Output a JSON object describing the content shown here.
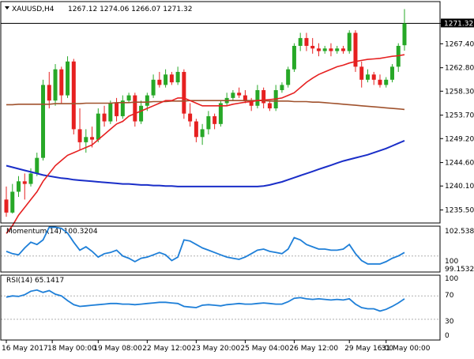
{
  "header": {
    "symbol": "XAUUSD,H4",
    "ohlc": "1267.12 1274.06 1266.07 1271.32"
  },
  "price_tag": "1271.32",
  "momentum_panel": {
    "label": "Momentum(14) 100.3204",
    "scale_top": "102.5385",
    "scale_mid": "100",
    "scale_bottom": "99.1532"
  },
  "rsi_panel": {
    "label": "RSI(14) 65.1417",
    "scale_top": "100",
    "scale_70": "70",
    "scale_30": "30",
    "scale_bottom": "0"
  },
  "colors": {
    "bull": "#27a827",
    "bear": "#e62020",
    "ma_fast": "#e62020",
    "ma_mid": "#a0522d",
    "ma_slow": "#1a2ec8",
    "indicator": "#1e7fd8",
    "grid": "#b0b0b0"
  },
  "chart_data": {
    "type": "candlestick",
    "price_axis": {
      "ticks": [
        "1271.32",
        "1267.40",
        "1262.80",
        "1258.30",
        "1253.70",
        "1249.20",
        "1244.60",
        "1240.10",
        "1235.50"
      ],
      "range": [
        1233.0,
        1275.5
      ]
    },
    "time_axis": {
      "ticks": [
        "16 May 2017",
        "18 May 00:00",
        "19 May 08:00",
        "22 May 12:00",
        "23 May 20:00",
        "25 May 04:00",
        "26 May 12:00",
        "29 May 16:00",
        "31 May 00:00"
      ]
    },
    "candles": [
      {
        "o": 1237.5,
        "h": 1240.0,
        "l": 1234.2,
        "c": 1235.0
      },
      {
        "o": 1235.0,
        "h": 1240.5,
        "l": 1234.8,
        "c": 1239.0
      },
      {
        "o": 1239.0,
        "h": 1242.0,
        "l": 1238.0,
        "c": 1241.0
      },
      {
        "o": 1241.0,
        "h": 1242.5,
        "l": 1237.5,
        "c": 1240.5
      },
      {
        "o": 1240.5,
        "h": 1243.5,
        "l": 1240.0,
        "c": 1242.5
      },
      {
        "o": 1242.5,
        "h": 1246.5,
        "l": 1242.0,
        "c": 1245.5
      },
      {
        "o": 1245.5,
        "h": 1260.5,
        "l": 1245.0,
        "c": 1259.5
      },
      {
        "o": 1259.5,
        "h": 1262.0,
        "l": 1255.0,
        "c": 1256.5
      },
      {
        "o": 1256.5,
        "h": 1263.5,
        "l": 1255.5,
        "c": 1262.5
      },
      {
        "o": 1262.5,
        "h": 1263.0,
        "l": 1256.0,
        "c": 1257.5
      },
      {
        "o": 1257.5,
        "h": 1265.0,
        "l": 1257.0,
        "c": 1264.0
      },
      {
        "o": 1264.0,
        "h": 1264.5,
        "l": 1250.0,
        "c": 1251.0
      },
      {
        "o": 1251.0,
        "h": 1255.0,
        "l": 1247.0,
        "c": 1248.5
      },
      {
        "o": 1248.5,
        "h": 1251.0,
        "l": 1246.5,
        "c": 1249.5
      },
      {
        "o": 1249.5,
        "h": 1251.5,
        "l": 1247.5,
        "c": 1249.0
      },
      {
        "o": 1249.0,
        "h": 1255.0,
        "l": 1248.5,
        "c": 1254.0
      },
      {
        "o": 1254.0,
        "h": 1255.5,
        "l": 1251.5,
        "c": 1252.5
      },
      {
        "o": 1252.5,
        "h": 1256.5,
        "l": 1252.0,
        "c": 1256.0
      },
      {
        "o": 1256.0,
        "h": 1257.0,
        "l": 1252.5,
        "c": 1253.5
      },
      {
        "o": 1253.5,
        "h": 1257.5,
        "l": 1253.0,
        "c": 1256.5
      },
      {
        "o": 1256.5,
        "h": 1258.0,
        "l": 1256.0,
        "c": 1257.5
      },
      {
        "o": 1257.5,
        "h": 1258.0,
        "l": 1251.5,
        "c": 1252.5
      },
      {
        "o": 1252.5,
        "h": 1256.5,
        "l": 1252.0,
        "c": 1255.5
      },
      {
        "o": 1255.5,
        "h": 1258.0,
        "l": 1254.5,
        "c": 1257.5
      },
      {
        "o": 1257.5,
        "h": 1261.5,
        "l": 1257.0,
        "c": 1260.5
      },
      {
        "o": 1260.5,
        "h": 1262.0,
        "l": 1259.0,
        "c": 1259.5
      },
      {
        "o": 1259.5,
        "h": 1262.5,
        "l": 1259.0,
        "c": 1261.5
      },
      {
        "o": 1261.5,
        "h": 1262.0,
        "l": 1259.5,
        "c": 1260.0
      },
      {
        "o": 1260.0,
        "h": 1263.0,
        "l": 1259.5,
        "c": 1262.0
      },
      {
        "o": 1262.0,
        "h": 1262.5,
        "l": 1253.0,
        "c": 1254.0
      },
      {
        "o": 1254.0,
        "h": 1256.0,
        "l": 1251.5,
        "c": 1252.5
      },
      {
        "o": 1252.5,
        "h": 1253.0,
        "l": 1248.5,
        "c": 1249.5
      },
      {
        "o": 1249.5,
        "h": 1252.0,
        "l": 1248.0,
        "c": 1251.0
      },
      {
        "o": 1251.0,
        "h": 1254.5,
        "l": 1250.0,
        "c": 1253.5
      },
      {
        "o": 1253.5,
        "h": 1254.0,
        "l": 1251.0,
        "c": 1252.0
      },
      {
        "o": 1252.0,
        "h": 1256.5,
        "l": 1251.5,
        "c": 1256.0
      },
      {
        "o": 1256.0,
        "h": 1258.0,
        "l": 1255.5,
        "c": 1257.0
      },
      {
        "o": 1257.0,
        "h": 1258.5,
        "l": 1256.5,
        "c": 1258.0
      },
      {
        "o": 1258.0,
        "h": 1259.0,
        "l": 1257.0,
        "c": 1257.5
      },
      {
        "o": 1257.5,
        "h": 1258.5,
        "l": 1256.0,
        "c": 1256.5
      },
      {
        "o": 1256.5,
        "h": 1257.0,
        "l": 1254.5,
        "c": 1255.5
      },
      {
        "o": 1255.5,
        "h": 1259.5,
        "l": 1255.0,
        "c": 1258.5
      },
      {
        "o": 1258.5,
        "h": 1259.0,
        "l": 1255.0,
        "c": 1256.0
      },
      {
        "o": 1256.0,
        "h": 1256.5,
        "l": 1254.5,
        "c": 1255.0
      },
      {
        "o": 1255.0,
        "h": 1259.5,
        "l": 1254.5,
        "c": 1258.5
      },
      {
        "o": 1258.5,
        "h": 1260.0,
        "l": 1258.0,
        "c": 1259.5
      },
      {
        "o": 1259.5,
        "h": 1263.0,
        "l": 1259.0,
        "c": 1262.5
      },
      {
        "o": 1262.5,
        "h": 1267.5,
        "l": 1262.0,
        "c": 1267.0
      },
      {
        "o": 1267.0,
        "h": 1269.5,
        "l": 1266.0,
        "c": 1268.5
      },
      {
        "o": 1268.5,
        "h": 1269.5,
        "l": 1266.0,
        "c": 1267.0
      },
      {
        "o": 1267.0,
        "h": 1268.5,
        "l": 1265.5,
        "c": 1266.5
      },
      {
        "o": 1266.5,
        "h": 1267.5,
        "l": 1265.0,
        "c": 1266.0
      },
      {
        "o": 1266.0,
        "h": 1267.0,
        "l": 1265.5,
        "c": 1266.5
      },
      {
        "o": 1266.5,
        "h": 1267.5,
        "l": 1265.0,
        "c": 1266.0
      },
      {
        "o": 1266.0,
        "h": 1267.0,
        "l": 1265.5,
        "c": 1266.5
      },
      {
        "o": 1266.5,
        "h": 1267.0,
        "l": 1265.5,
        "c": 1266.0
      },
      {
        "o": 1266.0,
        "h": 1270.0,
        "l": 1265.5,
        "c": 1269.5
      },
      {
        "o": 1269.5,
        "h": 1270.0,
        "l": 1262.0,
        "c": 1263.0
      },
      {
        "o": 1263.0,
        "h": 1264.0,
        "l": 1259.0,
        "c": 1260.5
      },
      {
        "o": 1260.5,
        "h": 1262.5,
        "l": 1260.0,
        "c": 1261.5
      },
      {
        "o": 1261.5,
        "h": 1262.0,
        "l": 1259.5,
        "c": 1260.5
      },
      {
        "o": 1260.5,
        "h": 1261.5,
        "l": 1259.0,
        "c": 1259.5
      },
      {
        "o": 1259.5,
        "h": 1261.0,
        "l": 1259.0,
        "c": 1260.5
      },
      {
        "o": 1260.5,
        "h": 1263.5,
        "l": 1260.0,
        "c": 1263.0
      },
      {
        "o": 1263.0,
        "h": 1267.5,
        "l": 1262.0,
        "c": 1267.0
      },
      {
        "o": 1267.12,
        "h": 1274.06,
        "l": 1266.07,
        "c": 1271.32
      }
    ],
    "ma_fast": [
      1231.0,
      1232.5,
      1234.5,
      1236.0,
      1237.5,
      1239.0,
      1241.0,
      1242.5,
      1244.0,
      1245.0,
      1246.0,
      1246.5,
      1247.0,
      1247.5,
      1248.0,
      1249.0,
      1250.0,
      1251.0,
      1252.0,
      1252.5,
      1253.5,
      1254.0,
      1254.5,
      1255.0,
      1255.5,
      1256.0,
      1256.5,
      1256.5,
      1257.0,
      1257.0,
      1256.5,
      1256.0,
      1255.5,
      1255.5,
      1255.5,
      1255.5,
      1255.5,
      1255.8,
      1256.0,
      1256.2,
      1256.3,
      1256.5,
      1256.6,
      1256.7,
      1256.8,
      1257.0,
      1257.5,
      1258.0,
      1259.0,
      1260.0,
      1260.8,
      1261.5,
      1262.0,
      1262.5,
      1263.0,
      1263.3,
      1263.7,
      1264.0,
      1264.2,
      1264.4,
      1264.5,
      1264.6,
      1264.8,
      1265.0,
      1265.1,
      1265.3
    ],
    "ma_mid": [
      1255.7,
      1255.7,
      1255.8,
      1255.8,
      1255.8,
      1255.8,
      1255.8,
      1255.8,
      1255.9,
      1255.9,
      1255.9,
      1255.9,
      1255.9,
      1256.0,
      1256.0,
      1256.0,
      1256.0,
      1256.0,
      1256.1,
      1256.1,
      1256.1,
      1256.2,
      1256.2,
      1256.2,
      1256.3,
      1256.3,
      1256.3,
      1256.4,
      1256.4,
      1256.4,
      1256.5,
      1256.5,
      1256.5,
      1256.5,
      1256.5,
      1256.5,
      1256.5,
      1256.5,
      1256.5,
      1256.5,
      1256.5,
      1256.5,
      1256.5,
      1256.4,
      1256.4,
      1256.4,
      1256.4,
      1256.3,
      1256.3,
      1256.3,
      1256.2,
      1256.2,
      1256.1,
      1256.0,
      1255.9,
      1255.8,
      1255.7,
      1255.6,
      1255.5,
      1255.4,
      1255.3,
      1255.2,
      1255.1,
      1255.0,
      1254.9,
      1254.8
    ],
    "ma_slow": [
      1244.0,
      1243.7,
      1243.4,
      1243.1,
      1242.8,
      1242.5,
      1242.2,
      1242.0,
      1241.8,
      1241.6,
      1241.5,
      1241.3,
      1241.2,
      1241.1,
      1241.0,
      1240.9,
      1240.8,
      1240.7,
      1240.6,
      1240.5,
      1240.5,
      1240.4,
      1240.3,
      1240.3,
      1240.2,
      1240.2,
      1240.1,
      1240.1,
      1240.0,
      1240.0,
      1240.0,
      1240.0,
      1240.0,
      1240.0,
      1240.0,
      1240.0,
      1240.0,
      1240.0,
      1240.0,
      1240.0,
      1240.0,
      1240.0,
      1240.1,
      1240.3,
      1240.6,
      1240.9,
      1241.3,
      1241.7,
      1242.1,
      1242.5,
      1242.9,
      1243.3,
      1243.7,
      1244.1,
      1244.5,
      1244.9,
      1245.2,
      1245.5,
      1245.8,
      1246.1,
      1246.5,
      1246.9,
      1247.3,
      1247.8,
      1248.3,
      1248.8
    ],
    "momentum": [
      100.4,
      100.2,
      100.1,
      100.7,
      101.2,
      101.0,
      101.4,
      102.5,
      102.5,
      102.4,
      102.0,
      101.2,
      100.5,
      100.8,
      100.4,
      99.9,
      100.2,
      100.3,
      100.5,
      100.0,
      99.8,
      99.5,
      99.8,
      99.9,
      100.1,
      100.3,
      100.1,
      99.6,
      99.9,
      101.4,
      101.3,
      101.0,
      100.7,
      100.5,
      100.3,
      100.1,
      99.9,
      99.8,
      99.7,
      99.9,
      100.2,
      100.5,
      100.6,
      100.4,
      100.3,
      100.2,
      100.6,
      101.6,
      101.4,
      101.0,
      100.8,
      100.6,
      100.6,
      100.5,
      100.5,
      100.6,
      101.0,
      100.2,
      99.6,
      99.3,
      99.3,
      99.3,
      99.5,
      99.8,
      100.0,
      100.3
    ],
    "rsi": [
      68,
      70,
      69,
      72,
      78,
      80,
      76,
      79,
      73,
      70,
      62,
      55,
      52,
      53,
      54,
      55,
      56,
      57,
      57,
      56,
      56,
      55,
      56,
      57,
      58,
      59,
      59,
      58,
      57,
      52,
      51,
      50,
      54,
      55,
      54,
      53,
      55,
      56,
      57,
      56,
      56,
      57,
      58,
      57,
      56,
      56,
      60,
      66,
      67,
      65,
      64,
      65,
      64,
      63,
      64,
      63,
      65,
      56,
      50,
      48,
      48,
      44,
      47,
      52,
      58,
      65
    ]
  }
}
